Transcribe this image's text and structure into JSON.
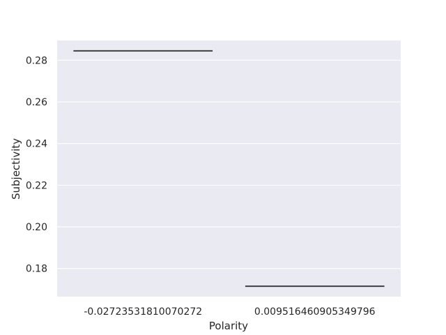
{
  "chart_data": {
    "type": "box",
    "xlabel": "Polarity",
    "ylabel": "Subjectivity",
    "categories": [
      "-0.02723531810070272",
      "0.009516460905349796"
    ],
    "values": [
      0.2845,
      0.1715
    ],
    "ylim": [
      0.1665,
      0.2895
    ],
    "yticks": [
      0.18,
      0.2,
      0.22,
      0.24,
      0.26,
      0.28
    ],
    "ytick_labels": [
      "0.18",
      "0.20",
      "0.22",
      "0.24",
      "0.26",
      "0.28"
    ],
    "grid": true,
    "style": {
      "plot_background": "#eaeaf2",
      "grid_color": "#ffffff",
      "mark_color": "#3f3f3f"
    }
  }
}
